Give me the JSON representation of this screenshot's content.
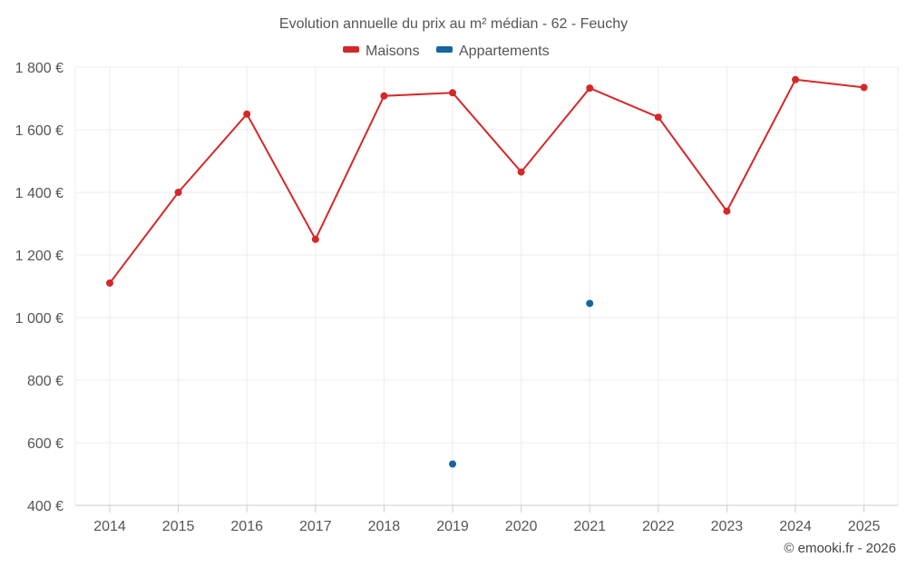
{
  "chart_data": {
    "type": "line",
    "title": "Evolution annuelle du prix au m² médian - 62 - Feuchy",
    "categories": [
      "2014",
      "2015",
      "2016",
      "2017",
      "2018",
      "2019",
      "2020",
      "2021",
      "2022",
      "2023",
      "2024",
      "2025"
    ],
    "ylim": [
      400,
      1800
    ],
    "yticks": [
      400,
      600,
      800,
      1000,
      1200,
      1400,
      1600,
      1800
    ],
    "ytick_labels": [
      "400 €",
      "600 €",
      "800 €",
      "1 000 €",
      "1 200 €",
      "1 400 €",
      "1 600 €",
      "1 800 €"
    ],
    "grid": true,
    "legend_position": "top-center",
    "series": [
      {
        "name": "Maisons",
        "color": "#d62728",
        "line": true,
        "values": [
          1110,
          1400,
          1650,
          1250,
          1708,
          1718,
          1465,
          1733,
          1640,
          1340,
          1760,
          1735
        ]
      },
      {
        "name": "Appartements",
        "color": "#1565a0",
        "line": false,
        "values": [
          null,
          null,
          null,
          null,
          null,
          532,
          null,
          1045,
          null,
          null,
          null,
          null
        ]
      }
    ]
  },
  "credit": "© emooki.fr - 2026"
}
